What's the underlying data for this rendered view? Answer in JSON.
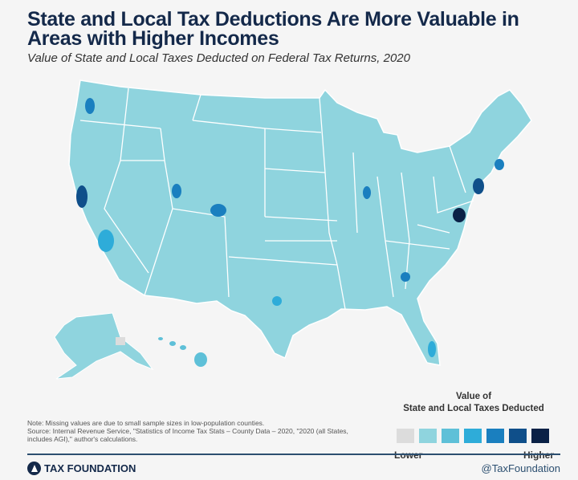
{
  "header": {
    "title": "State and Local Tax Deductions Are More Valuable in Areas with Higher Incomes",
    "subtitle": "Value of State and Local Taxes Deducted on Federal Tax Returns, 2020"
  },
  "legend": {
    "title_line1": "Value of",
    "title_line2": "State and Local Taxes Deducted",
    "low_label": "Lower",
    "high_label": "Higher",
    "colors": [
      "#dcdcdc",
      "#8fd4de",
      "#5ec0d8",
      "#2eacd9",
      "#1a7fbf",
      "#0f4f8a",
      "#0a2146"
    ]
  },
  "map": {
    "base_color": "#8fd4de",
    "border_color": "#ffffff"
  },
  "footer": {
    "note": "Note: Missing values are due to small sample sizes in low-population counties.",
    "source": "Source: Internal Revenue Service, \"Statistics of Income Tax Stats – County Data – 2020, \"2020 (all States, includes AGI),\" author's calculations.",
    "brand": "TAX FOUNDATION",
    "handle": "@TaxFoundation"
  }
}
